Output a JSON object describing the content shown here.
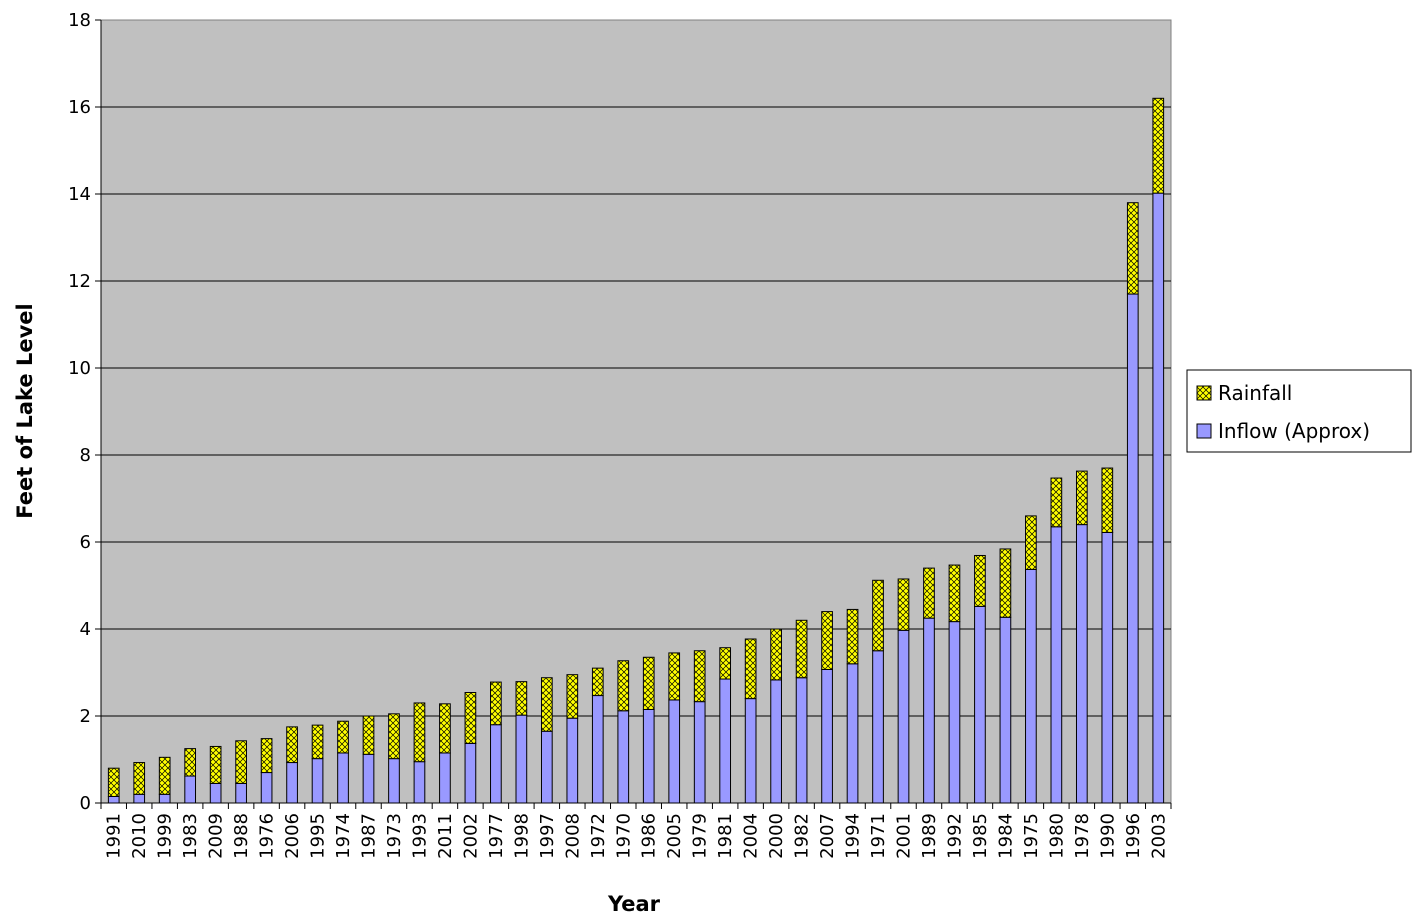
{
  "chart_data": {
    "type": "bar",
    "stacked": true,
    "title": "",
    "xlabel": "Year",
    "ylabel": "Feet of Lake Level",
    "ylim": [
      0,
      18
    ],
    "ytick_step": 2,
    "grid": true,
    "legend_position": "right",
    "plot_background": "#c0c0c0",
    "categories": [
      "1991",
      "2010",
      "1999",
      "1983",
      "2009",
      "1988",
      "1976",
      "2006",
      "1995",
      "1974",
      "1987",
      "1973",
      "1993",
      "2011",
      "2002",
      "1977",
      "1998",
      "1997",
      "2008",
      "1972",
      "1970",
      "1986",
      "2005",
      "1979",
      "1981",
      "2004",
      "2000",
      "1982",
      "2007",
      "1994",
      "1971",
      "2001",
      "1989",
      "1992",
      "1985",
      "1984",
      "1975",
      "1980",
      "1978",
      "1990",
      "1996",
      "2003"
    ],
    "series": [
      {
        "name": "Inflow (Approx)",
        "color": "#9999ff",
        "values": [
          0.15,
          0.2,
          0.2,
          0.62,
          0.45,
          0.45,
          0.7,
          0.93,
          1.02,
          1.15,
          1.12,
          1.02,
          0.95,
          1.15,
          1.37,
          1.8,
          2.02,
          1.65,
          1.95,
          2.47,
          2.12,
          2.15,
          2.37,
          2.33,
          2.85,
          2.4,
          2.83,
          2.88,
          3.07,
          3.2,
          3.5,
          3.97,
          4.25,
          4.17,
          4.52,
          4.27,
          5.37,
          6.35,
          6.4,
          6.22,
          11.7,
          14.02
        ]
      },
      {
        "name": "Rainfall",
        "color": "#ffff00",
        "values": [
          0.65,
          0.73,
          0.85,
          0.63,
          0.85,
          0.98,
          0.78,
          0.82,
          0.77,
          0.73,
          0.88,
          1.03,
          1.35,
          1.13,
          1.17,
          0.98,
          0.77,
          1.23,
          1.0,
          0.63,
          1.15,
          1.2,
          1.08,
          1.17,
          0.72,
          1.37,
          1.17,
          1.32,
          1.33,
          1.25,
          1.62,
          1.18,
          1.15,
          1.3,
          1.17,
          1.57,
          1.23,
          1.12,
          1.23,
          1.48,
          2.1,
          2.18
        ]
      }
    ]
  }
}
